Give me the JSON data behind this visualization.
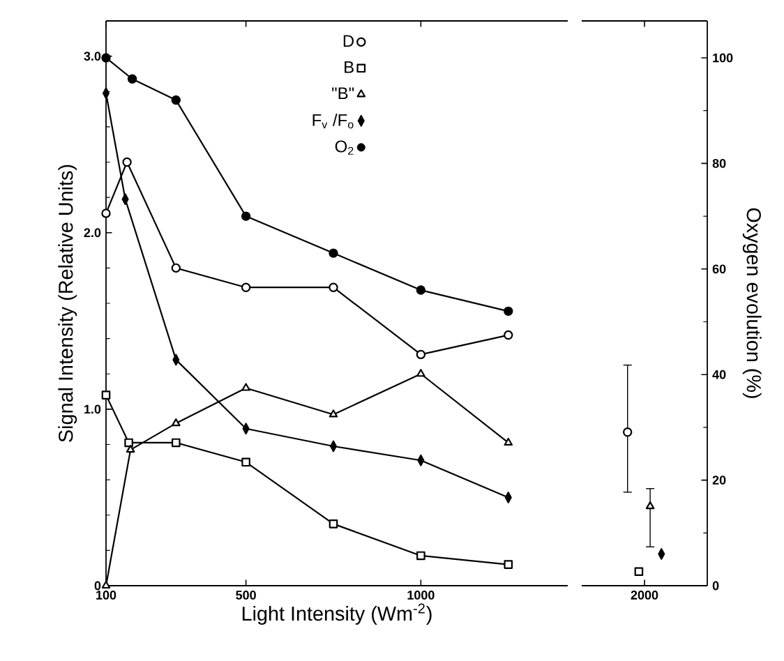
{
  "chart_data": [
    {
      "type": "line",
      "xlabel": "Light Intensity (Wm$^{-2}$)",
      "ylabel": "Signal Intensity (Relative Units)",
      "xlim": [
        100,
        1420
      ],
      "xticks": [
        100,
        500,
        1000
      ],
      "ylim": [
        0,
        3.2
      ],
      "yticks": [
        0,
        {
          "value": 1,
          "label": "1.0"
        },
        {
          "value": 2,
          "label": "2.0"
        },
        {
          "value": 3,
          "label": "3.0"
        }
      ],
      "y2lim": [
        0,
        107
      ],
      "legend": "top",
      "tick_labels": [
        "x",
        "y"
      ],
      "series": [
        {
          "name": "D",
          "color": "#ffffff",
          "marker": "circle",
          "x": [
            100,
            160,
            300,
            500,
            750,
            1000,
            1250
          ],
          "values": [
            2.11,
            2.4,
            1.8,
            1.69,
            1.69,
            1.31,
            1.42
          ]
        },
        {
          "name": "B",
          "color": "#ffffff",
          "marker": "square",
          "x": [
            100,
            165,
            300,
            500,
            750,
            1000,
            1250
          ],
          "values": [
            1.08,
            0.81,
            0.81,
            0.7,
            0.35,
            0.17,
            0.12
          ]
        },
        {
          "name": "\"B\"",
          "color": "#ffffff",
          "marker": "triangle",
          "x": [
            100,
            170,
            300,
            500,
            750,
            1000,
            1250
          ],
          "values": [
            0.0,
            0.77,
            0.92,
            1.12,
            0.97,
            1.2,
            0.81
          ]
        },
        {
          "name": "F$_{v}$ /F$_{o}$",
          "color": "#000000",
          "marker": "diamond",
          "x": [
            100,
            155,
            300,
            500,
            750,
            1000,
            1250
          ],
          "values": [
            2.79,
            2.19,
            1.28,
            0.89,
            0.79,
            0.71,
            0.5
          ]
        },
        {
          "name": "O$_{2}$",
          "color": "#000000",
          "marker": "circle",
          "axis": "y2",
          "x": [
            100,
            175,
            300,
            500,
            750,
            1000,
            1250
          ],
          "values": [
            100,
            96,
            92,
            70,
            63,
            56,
            52
          ]
        }
      ]
    },
    {
      "type": "scatter",
      "y2label": "Oxygen evolution (%)",
      "categories": [
        "2000"
      ],
      "ylim": [
        0,
        3.2
      ],
      "y2lim": [
        0,
        107
      ],
      "y2ticks": [
        0,
        20,
        40,
        60,
        80,
        100
      ],
      "tick_labels": [
        "x",
        "y2"
      ],
      "series": [
        {
          "color": "#ffffff",
          "marker": "circle",
          "values": [
            0.87
          ],
          "errors": [
            [
              0.53,
              1.25
            ]
          ]
        },
        {
          "color": "#ffffff",
          "marker": "square",
          "values": [
            0.08
          ]
        },
        {
          "color": "#ffffff",
          "marker": "triangle",
          "values": [
            0.45
          ],
          "errors": [
            [
              0.22,
              0.55
            ]
          ]
        },
        {
          "color": "#000000",
          "marker": "diamond",
          "values": [
            0.18
          ]
        }
      ]
    }
  ]
}
